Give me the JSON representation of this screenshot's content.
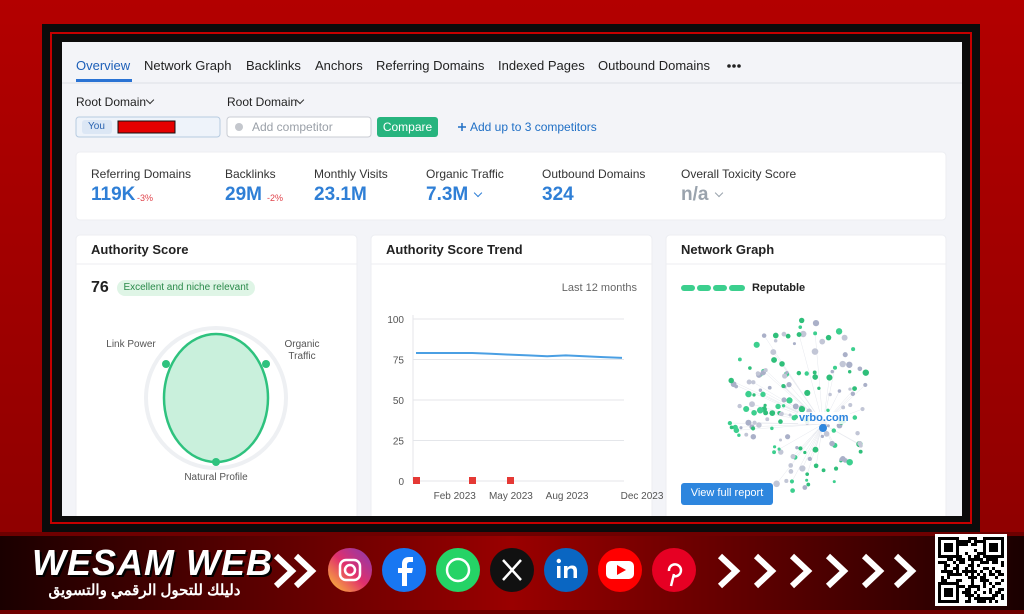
{
  "tabs": [
    "Overview",
    "Network Graph",
    "Backlinks",
    "Anchors",
    "Referring Domains",
    "Indexed Pages",
    "Outbound Domains"
  ],
  "filters": {
    "root_domain_1": "Root Domain",
    "root_domain_2": "Root Domain",
    "you": "You",
    "placeholder": "Add competitor",
    "compare": "Compare",
    "add_competitors": "Add up to 3 competitors"
  },
  "metrics": [
    {
      "label": "Referring Domains",
      "value": "119K",
      "change": "-3%"
    },
    {
      "label": "Backlinks",
      "value": "29M",
      "change": "-2%"
    },
    {
      "label": "Monthly Visits",
      "value": "23.1M"
    },
    {
      "label": "Organic Traffic",
      "value": "7.3M"
    },
    {
      "label": "Outbound Domains",
      "value": "324"
    },
    {
      "label": "Overall Toxicity Score",
      "value": "n/a"
    }
  ],
  "authority": {
    "title": "Authority Score",
    "score": "76",
    "badge": "Excellent and niche relevant",
    "axes": [
      "Link Power",
      "Organic Traffic",
      "Natural Profile"
    ]
  },
  "trend": {
    "title": "Authority Score Trend",
    "period": "Last 12 months",
    "chart_data": {
      "type": "line",
      "categories": [
        null,
        "Feb 2023",
        null,
        null,
        "May 2023",
        null,
        null,
        "Aug 2023",
        null,
        null,
        null,
        "Dec 2023"
      ],
      "values": [
        79,
        79,
        79,
        79,
        78.5,
        78,
        77.5,
        77,
        77.5,
        77,
        76.5,
        76
      ],
      "color": "#4a9fe3",
      "ylim": [
        0,
        100
      ],
      "yticks": [
        0,
        25,
        50,
        75,
        100
      ],
      "grid": true
    }
  },
  "network": {
    "title": "Network Graph",
    "status": "Reputable",
    "domain": "vrbo.com",
    "button": "View full report"
  },
  "brand": {
    "name": "WESAM WEB",
    "tagline": "دليلك للتحول الرقمي والتسويق"
  }
}
